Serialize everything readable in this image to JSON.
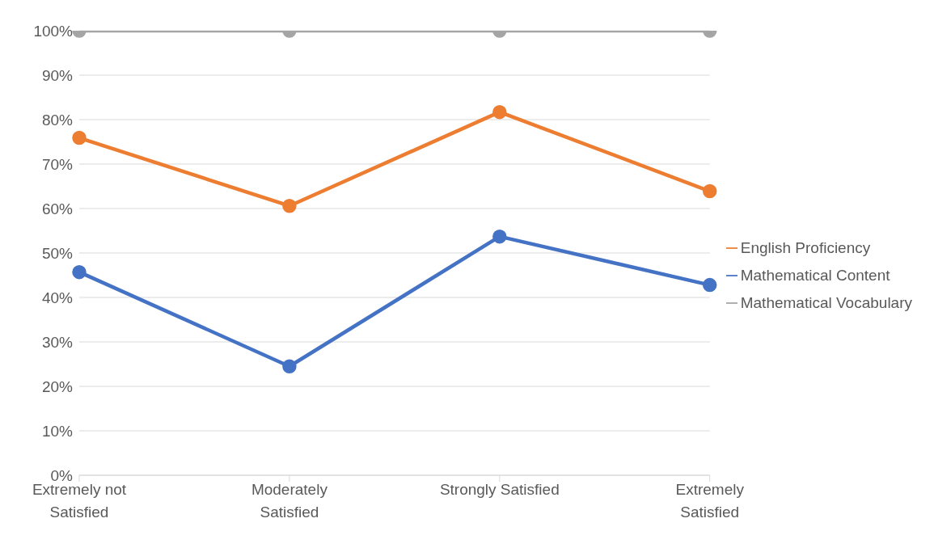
{
  "chart_data": {
    "type": "line",
    "categories": [
      "Extremely not Satisfied",
      "Moderately Satisfied",
      "Strongly Satisfied",
      "Extremely Satisfied"
    ],
    "series": [
      {
        "name": "Mathematical Vocabulary",
        "color": "#a5a5a5",
        "values": [
          100,
          100,
          100,
          100
        ]
      },
      {
        "name": "English Proficiency",
        "color": "#ed7d31",
        "values": [
          75.9,
          60.6,
          81.7,
          63.9
        ]
      },
      {
        "name": "Mathematical Content",
        "color": "#4472c4",
        "values": [
          45.7,
          24.5,
          53.7,
          42.8
        ]
      }
    ],
    "ylim": [
      0,
      100
    ],
    "yticks": [
      {
        "value": 0,
        "label": "0%"
      },
      {
        "value": 10,
        "label": "10%"
      },
      {
        "value": 20,
        "label": "20%"
      },
      {
        "value": 30,
        "label": "30%"
      },
      {
        "value": 40,
        "label": "40%"
      },
      {
        "value": 50,
        "label": "50%"
      },
      {
        "value": 60,
        "label": "60%"
      },
      {
        "value": 70,
        "label": "70%"
      },
      {
        "value": 80,
        "label": "80%"
      },
      {
        "value": 90,
        "label": "90%"
      },
      {
        "value": 100,
        "label": "100%"
      }
    ],
    "grid": "y",
    "legend": "right",
    "marker": "circle",
    "line_style": "solid"
  }
}
